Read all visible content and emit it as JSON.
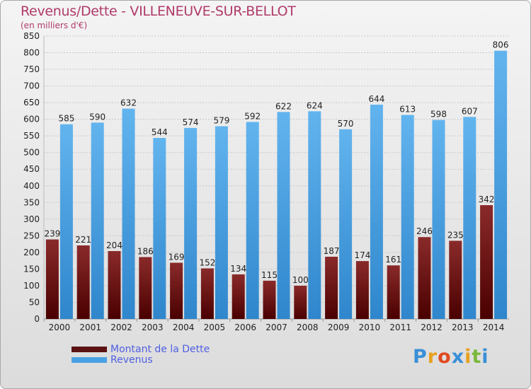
{
  "title": "Revenus/Dette - VILLENEUVE-SUR-BELLOT",
  "subtitle": "(en milliers d'€)",
  "logo": {
    "letters": [
      "P",
      "r",
      "o",
      "x",
      "i",
      "t",
      "i"
    ],
    "colors": [
      "#3a8fd8",
      "#e8a020",
      "#e04a20",
      "#3a8fd8",
      "#e8a020",
      "#7ab83a",
      "#3a8fd8"
    ]
  },
  "colors": {
    "dette_top": "#8a2a2a",
    "dette_bottom": "#4a0000",
    "revenus_top": "#62b4ee",
    "revenus_bottom": "#2f86cc",
    "axis_text": "#222222",
    "grid": "#c8c8c8"
  },
  "legend": [
    {
      "label": "Montant de la Dette",
      "color": "#5a1212"
    },
    {
      "label": "Revenus",
      "color": "#4aa0e4"
    }
  ],
  "chart_data": {
    "type": "bar",
    "categories": [
      "2000",
      "2001",
      "2002",
      "2003",
      "2004",
      "2005",
      "2006",
      "2007",
      "2008",
      "2009",
      "2010",
      "2011",
      "2012",
      "2013",
      "2014"
    ],
    "series": [
      {
        "name": "Montant de la Dette",
        "values": [
          239,
          221,
          204,
          186,
          169,
          152,
          134,
          115,
          100,
          187,
          174,
          161,
          246,
          235,
          342
        ]
      },
      {
        "name": "Revenus",
        "values": [
          585,
          590,
          632,
          544,
          574,
          579,
          592,
          622,
          624,
          570,
          644,
          613,
          598,
          607,
          806
        ]
      }
    ],
    "yticks": [
      "0",
      "50",
      "100",
      "150",
      "200",
      "250",
      "300",
      "350",
      "400",
      "450",
      "500",
      "550",
      "600",
      "650",
      "700",
      "750",
      "800",
      "850"
    ],
    "ylim": [
      0,
      850
    ],
    "grid": true,
    "legend_position": "bottom-left"
  }
}
